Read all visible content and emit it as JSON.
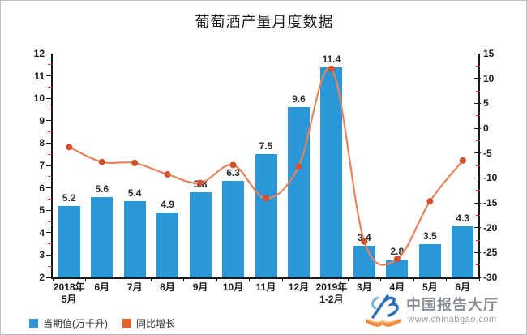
{
  "title": "葡萄酒产量月度数据",
  "chart_data": {
    "type": "bar",
    "subtype": "bar-line-combo",
    "title": "葡萄酒产量月度数据",
    "categories": [
      "2018年5月",
      "6月",
      "7月",
      "8月",
      "9月",
      "10月",
      "11月",
      "12月",
      "2019年1-2月",
      "3月",
      "4月",
      "5月",
      "6月"
    ],
    "categories_display": [
      [
        "2018年",
        "5月"
      ],
      [
        "6月"
      ],
      [
        "7月"
      ],
      [
        "8月"
      ],
      [
        "9月"
      ],
      [
        "10月"
      ],
      [
        "11月"
      ],
      [
        "12月"
      ],
      [
        "2019年",
        "1-2月"
      ],
      [
        "3月"
      ],
      [
        "4月"
      ],
      [
        "5月"
      ],
      [
        "6月"
      ]
    ],
    "series": [
      {
        "name": "当期值(万千升)",
        "type": "bar",
        "axis": "left",
        "color": "#2b97d9",
        "values": [
          5.2,
          5.6,
          5.4,
          4.9,
          5.8,
          6.3,
          7.5,
          9.6,
          11.4,
          3.4,
          2.8,
          3.5,
          4.3
        ],
        "data_labels": true
      },
      {
        "name": "同比增长",
        "type": "line",
        "axis": "right",
        "color": "#e8825c",
        "marker_color": "#d0532b",
        "smooth": true,
        "values": [
          -3.8,
          -6.8,
          -7.0,
          -9.3,
          -11.0,
          -7.4,
          -14.1,
          -7.7,
          11.9,
          -22.8,
          -26.3,
          -14.7,
          -6.5
        ],
        "data_labels": false
      }
    ],
    "axes": {
      "left": {
        "min": 2,
        "max": 12,
        "major_step": 1,
        "minor_step": 0.5,
        "tick_labels": [
          "2",
          "3",
          "4",
          "5",
          "6",
          "7",
          "8",
          "9",
          "10",
          "11",
          "12"
        ],
        "axis_color": "#1a1a1a",
        "minor_tick_color": "#e03a2f"
      },
      "right": {
        "min": -30,
        "max": 15,
        "major_step": 5,
        "minor_step": 2.5,
        "tick_labels": [
          "-30",
          "-25",
          "-20",
          "-15",
          "-10",
          "-5",
          "0",
          "5",
          "10",
          "15"
        ],
        "axis_color": "#1a1a1a",
        "minor_tick_color": "#e03a2f"
      }
    },
    "grid": false,
    "legend_position": "bottom-left"
  },
  "legend": {
    "items": [
      {
        "label": "当期值(万千升)",
        "color": "#2b97d9"
      },
      {
        "label": "同比增长",
        "color": "#e2622b"
      }
    ]
  },
  "watermark": {
    "name": "中国报告大厅",
    "url": "www.chinabgao.com",
    "logo_blue": "#2f6eb3",
    "logo_light_blue": "#7fb4d9",
    "logo_orange": "#f08b3f"
  },
  "frame": {
    "border_color": "#bfbfbf",
    "background": "#ffffff"
  }
}
